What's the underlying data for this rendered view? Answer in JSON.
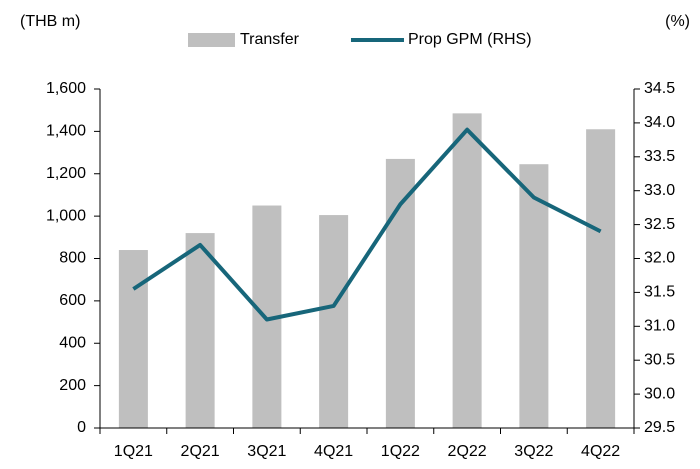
{
  "chart_data": {
    "type": "bar_line",
    "y_label": "(THB m)",
    "y2_label": "(%)",
    "categories": [
      "1Q21",
      "2Q21",
      "3Q21",
      "4Q21",
      "1Q22",
      "2Q22",
      "3Q22",
      "4Q22"
    ],
    "series": [
      {
        "name": "Transfer",
        "type": "bar",
        "color": "#bfbfbf",
        "values": [
          840,
          920,
          1050,
          1005,
          1270,
          1485,
          1245,
          1410
        ]
      },
      {
        "name": "Prop GPM (RHS)",
        "type": "line",
        "axis": "y2",
        "color": "#17667a",
        "values": [
          31.55,
          32.2,
          31.1,
          31.3,
          32.8,
          33.9,
          32.9,
          32.4
        ]
      }
    ],
    "ylim": [
      0,
      1600
    ],
    "yticks": [
      0,
      200,
      400,
      600,
      800,
      {
        "value": 1000,
        "label": "1,000"
      },
      {
        "value": 1200,
        "label": "1,200"
      },
      {
        "value": 1400,
        "label": "1,400"
      },
      {
        "value": 1600,
        "label": "1,600"
      }
    ],
    "y2lim": [
      29.5,
      34.5
    ],
    "y2ticks": [
      {
        "value": 29.5,
        "label": "29.5"
      },
      {
        "value": 30,
        "label": "30.0"
      },
      {
        "value": 30.5,
        "label": "30.5"
      },
      {
        "value": 31,
        "label": "31.0"
      },
      {
        "value": 31.5,
        "label": "31.5"
      },
      {
        "value": 32,
        "label": "32.0"
      },
      {
        "value": 32.5,
        "label": "32.5"
      },
      {
        "value": 33,
        "label": "33.0"
      },
      {
        "value": 33.5,
        "label": "33.5"
      },
      {
        "value": 34,
        "label": "34.0"
      },
      {
        "value": 34.5,
        "label": "34.5"
      }
    ],
    "grid": false
  }
}
